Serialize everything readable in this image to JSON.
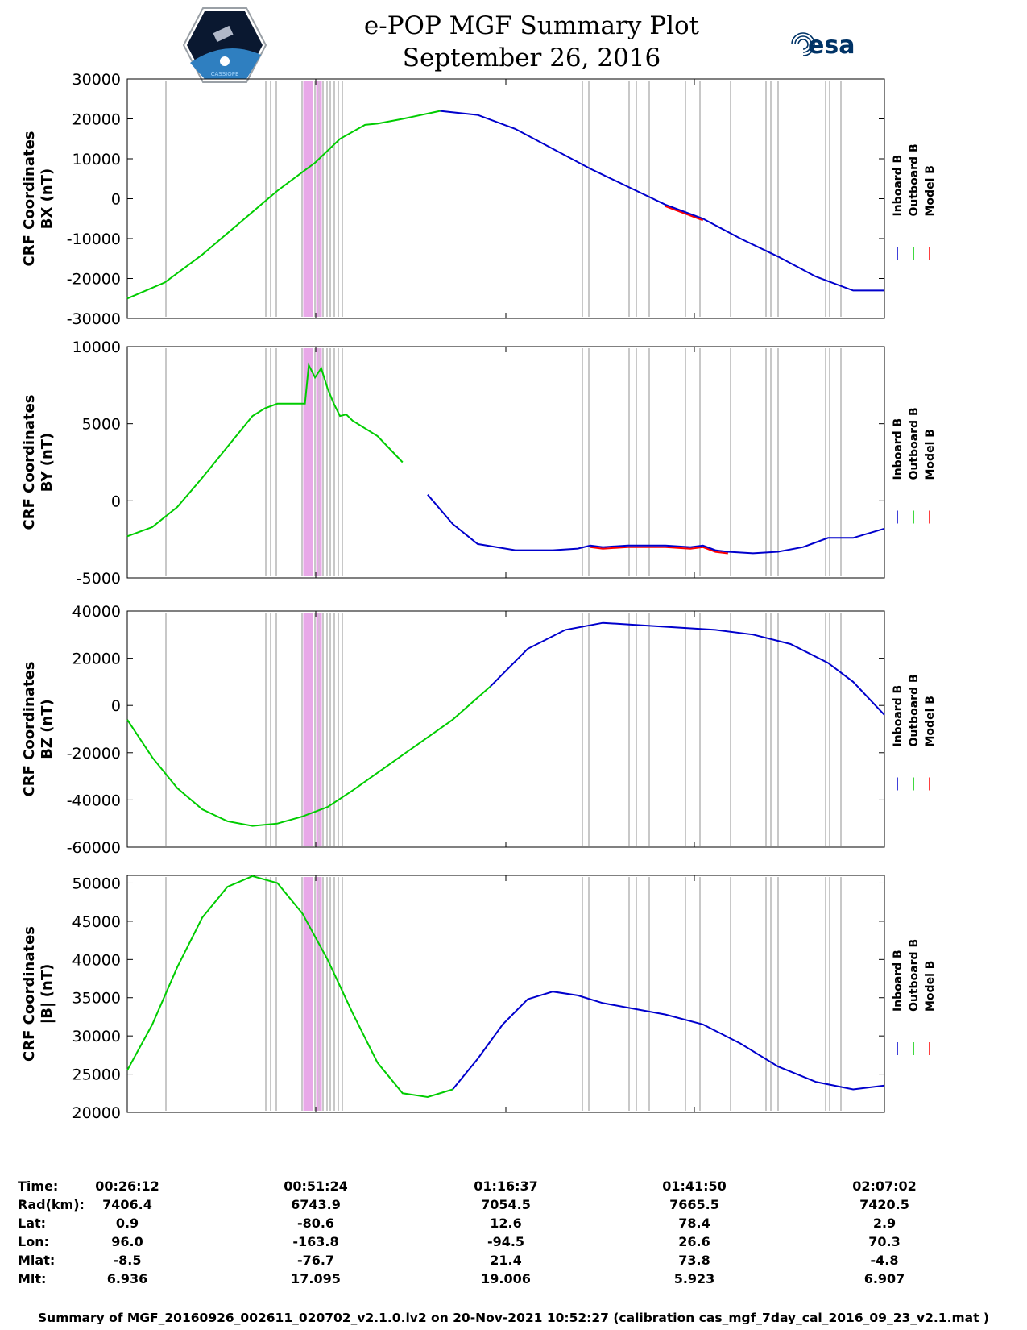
{
  "title": {
    "line1": "e-POP MGF Summary Plot",
    "line2": "September 26, 2016"
  },
  "logos": {
    "left": "CASSIOPE",
    "right": "esa"
  },
  "legend": {
    "entries": [
      "Inboard B",
      "Outboard B",
      "Model B"
    ],
    "colors": [
      "#0000cc",
      "#00cc00",
      "#ff0000"
    ]
  },
  "colors": {
    "inboard": "#0000cc",
    "outboard": "#00cc00",
    "model": "#ff0000",
    "bad_data_gray": "#c8c8c8",
    "bad_data_pink": "#e8a8e8"
  },
  "chart_data": [
    {
      "type": "line",
      "ylabel_line1": "CRF Coordinates",
      "ylabel_line2": "BX (nT)",
      "ylim": [
        -30000,
        30000
      ],
      "yticks": [
        30000,
        20000,
        10000,
        0,
        -10000,
        -20000,
        -30000
      ],
      "x_range_s": [
        0,
        6050
      ],
      "outboard_until_s": 2500,
      "model_window_s": [
        4300,
        4800
      ],
      "x": [
        0,
        300,
        600,
        900,
        1200,
        1500,
        1700,
        1900,
        2000,
        2200,
        2500,
        2800,
        3100,
        3400,
        3700,
        4000,
        4300,
        4600,
        4900,
        5200,
        5500,
        5800,
        6050
      ],
      "values": [
        -25000,
        -21000,
        -14000,
        -6000,
        2000,
        9000,
        15000,
        18500,
        18800,
        20000,
        22000,
        21000,
        17500,
        12500,
        7500,
        3000,
        -1500,
        -5000,
        -10000,
        -14500,
        -19500,
        -23000,
        -23000
      ]
    },
    {
      "type": "line",
      "ylabel_line1": "CRF Coordinates",
      "ylabel_line2": "BY (nT)",
      "ylim": [
        -5000,
        10000
      ],
      "yticks": [
        10000,
        5000,
        0,
        -5000
      ],
      "x_range_s": [
        0,
        6050
      ],
      "outboard_until_s": 2350,
      "model_window_s": [
        3700,
        4800
      ],
      "x": [
        0,
        200,
        400,
        600,
        800,
        1000,
        1100,
        1200,
        1350,
        1420,
        1450,
        1500,
        1550,
        1600,
        1650,
        1700,
        1750,
        1800,
        2000,
        2200,
        2400,
        2600,
        2800,
        3100,
        3400,
        3600,
        3700,
        3800,
        4000,
        4300,
        4500,
        4600,
        4700,
        4800,
        5000,
        5200,
        5400,
        5500,
        5600,
        5800,
        6050
      ],
      "values": [
        -2300,
        -1700,
        -400,
        1500,
        3500,
        5500,
        6000,
        6300,
        6300,
        6300,
        8800,
        8000,
        8600,
        7300,
        6300,
        5500,
        5600,
        5200,
        4200,
        2500,
        400,
        -1500,
        -2800,
        -3200,
        -3200,
        -3100,
        -2900,
        -3000,
        -2900,
        -2900,
        -3000,
        -2900,
        -3200,
        -3300,
        -3400,
        -3300,
        -3000,
        -2700,
        -2400,
        -2400,
        -1800
      ]
    },
    {
      "type": "line",
      "ylabel_line1": "CRF Coordinates",
      "ylabel_line2": "BZ (nT)",
      "ylim": [
        -60000,
        40000
      ],
      "yticks": [
        40000,
        20000,
        0,
        -20000,
        -40000,
        -60000
      ],
      "x_range_s": [
        0,
        6050
      ],
      "outboard_until_s": 2900,
      "model_window_s": [
        0,
        0
      ],
      "x": [
        0,
        200,
        400,
        600,
        800,
        1000,
        1200,
        1400,
        1600,
        1800,
        2200,
        2600,
        2900,
        3200,
        3500,
        3800,
        4100,
        4400,
        4700,
        5000,
        5300,
        5600,
        5800,
        6050
      ],
      "values": [
        -6000,
        -22000,
        -35000,
        -44000,
        -49000,
        -51000,
        -50000,
        -47000,
        -43000,
        -36000,
        -21000,
        -6000,
        8000,
        24000,
        32000,
        35000,
        34000,
        33000,
        32000,
        30000,
        26000,
        18000,
        10000,
        -4000
      ]
    },
    {
      "type": "line",
      "ylabel_line1": "CRF Coordinates",
      "ylabel_line2": "|B| (nT)",
      "ylim": [
        20000,
        51000
      ],
      "yticks": [
        50000,
        45000,
        40000,
        35000,
        30000,
        25000,
        20000
      ],
      "x_range_s": [
        0,
        6050
      ],
      "outboard_until_s": 2600,
      "model_window_s": [
        0,
        0
      ],
      "x": [
        0,
        200,
        400,
        600,
        800,
        1000,
        1200,
        1400,
        1600,
        1800,
        2000,
        2200,
        2400,
        2600,
        2800,
        3000,
        3200,
        3400,
        3600,
        3800,
        4000,
        4300,
        4600,
        4900,
        5200,
        5500,
        5800,
        6050
      ],
      "values": [
        25500,
        31500,
        39000,
        45500,
        49500,
        50900,
        50000,
        46000,
        40000,
        33000,
        26500,
        22500,
        22000,
        23000,
        27000,
        31500,
        34800,
        35800,
        35300,
        34300,
        33700,
        32800,
        31500,
        29000,
        26000,
        24000,
        23000,
        23500
      ]
    }
  ],
  "time_table": {
    "labels": [
      "Time:",
      "Rad(km):",
      "Lat:",
      "Lon:",
      "Mlat:",
      "Mlt:"
    ],
    "columns": [
      [
        "00:26:12",
        "7406.4",
        "0.9",
        "96.0",
        "-8.5",
        "6.936"
      ],
      [
        "00:51:24",
        "6743.9",
        "-80.6",
        "-163.8",
        "-76.7",
        "17.095"
      ],
      [
        "01:16:37",
        "7054.5",
        "12.6",
        "-94.5",
        "21.4",
        "19.006"
      ],
      [
        "01:41:50",
        "7665.5",
        "78.4",
        "26.6",
        "73.8",
        "5.923"
      ],
      [
        "02:07:02",
        "7420.5",
        "2.9",
        "70.3",
        "-4.8",
        "6.907"
      ]
    ]
  },
  "footer": "Summary of MGF_20160926_002611_020702_v2.1.0.lv2 on 20-Nov-2021 10:52:27 (calibration cas_mgf_7day_cal_2016_09_23_v2.1.mat )"
}
